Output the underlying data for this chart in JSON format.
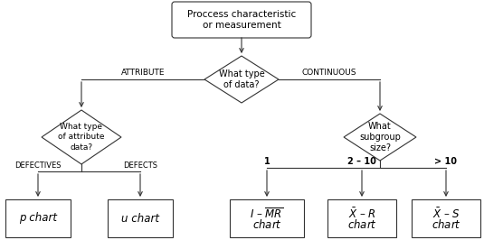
{
  "bg_color": "#ffffff",
  "line_color": "#333333",
  "box_color": "#ffffff",
  "top_text": "Proccess characteristic\nor measurement",
  "diamond1_text": "What type\nof data?",
  "diamond2_text": "What type\nof attribute\ndata?",
  "diamond3_text": "What\nsubgroup\nsize?",
  "label_attribute": "ATTRIBUTE",
  "label_continuous": "CONTINUOUS",
  "label_defectives": "DEFECTIVES",
  "label_defects": "DEFECTS",
  "label_1": "1",
  "label_2_10": "2 – 10",
  "label_gt10": "> 10",
  "box_p": "p chart",
  "box_u": "u chart"
}
